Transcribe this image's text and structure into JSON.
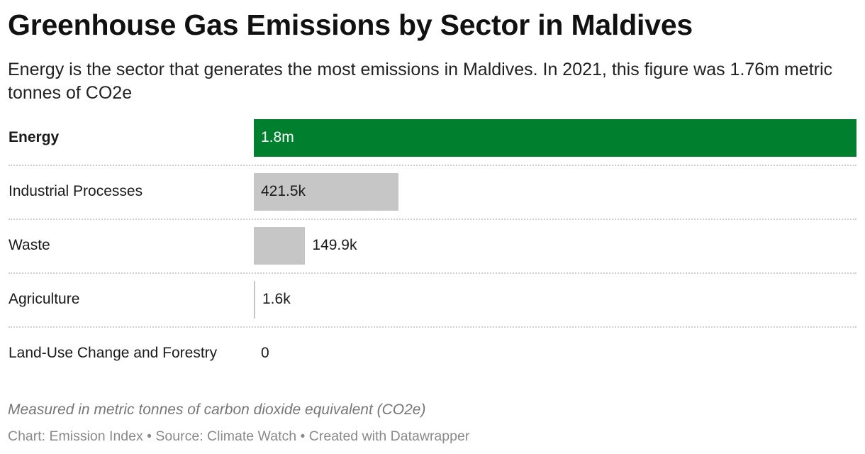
{
  "header": {
    "title": "Greenhouse Gas Emissions by Sector in Maldives",
    "subtitle": "Energy is the sector that generates the most emissions in Maldives. In 2021, this figure was 1.76m metric tonnes of CO2e"
  },
  "notes": "Measured in metric tonnes of carbon dioxide equivalent (CO2e)",
  "footer": {
    "chart_credit": "Chart: Emission Index",
    "source": "Source: Climate Watch",
    "created_with": "Created with Datawrapper",
    "separator": "•"
  },
  "colors": {
    "highlight": "#00802f",
    "default_bar": "#c6c6c6",
    "text": "#1a1a1a",
    "highlight_value_text": "#ffffff"
  },
  "chart_data": {
    "type": "bar",
    "orientation": "horizontal",
    "title": "Greenhouse Gas Emissions by Sector in Maldives",
    "xlabel": "",
    "ylabel": "",
    "xlim": [
      0,
      1760000
    ],
    "grid": false,
    "legend": "none",
    "categories": [
      "Energy",
      "Industrial Processes",
      "Waste",
      "Agriculture",
      "Land-Use Change and Forestry"
    ],
    "values": [
      1760000,
      421500,
      149900,
      1600,
      0
    ],
    "value_labels": [
      "1.8m",
      "421.5k",
      "149.9k",
      "1.6k",
      "0"
    ],
    "highlighted": [
      "Energy"
    ]
  }
}
